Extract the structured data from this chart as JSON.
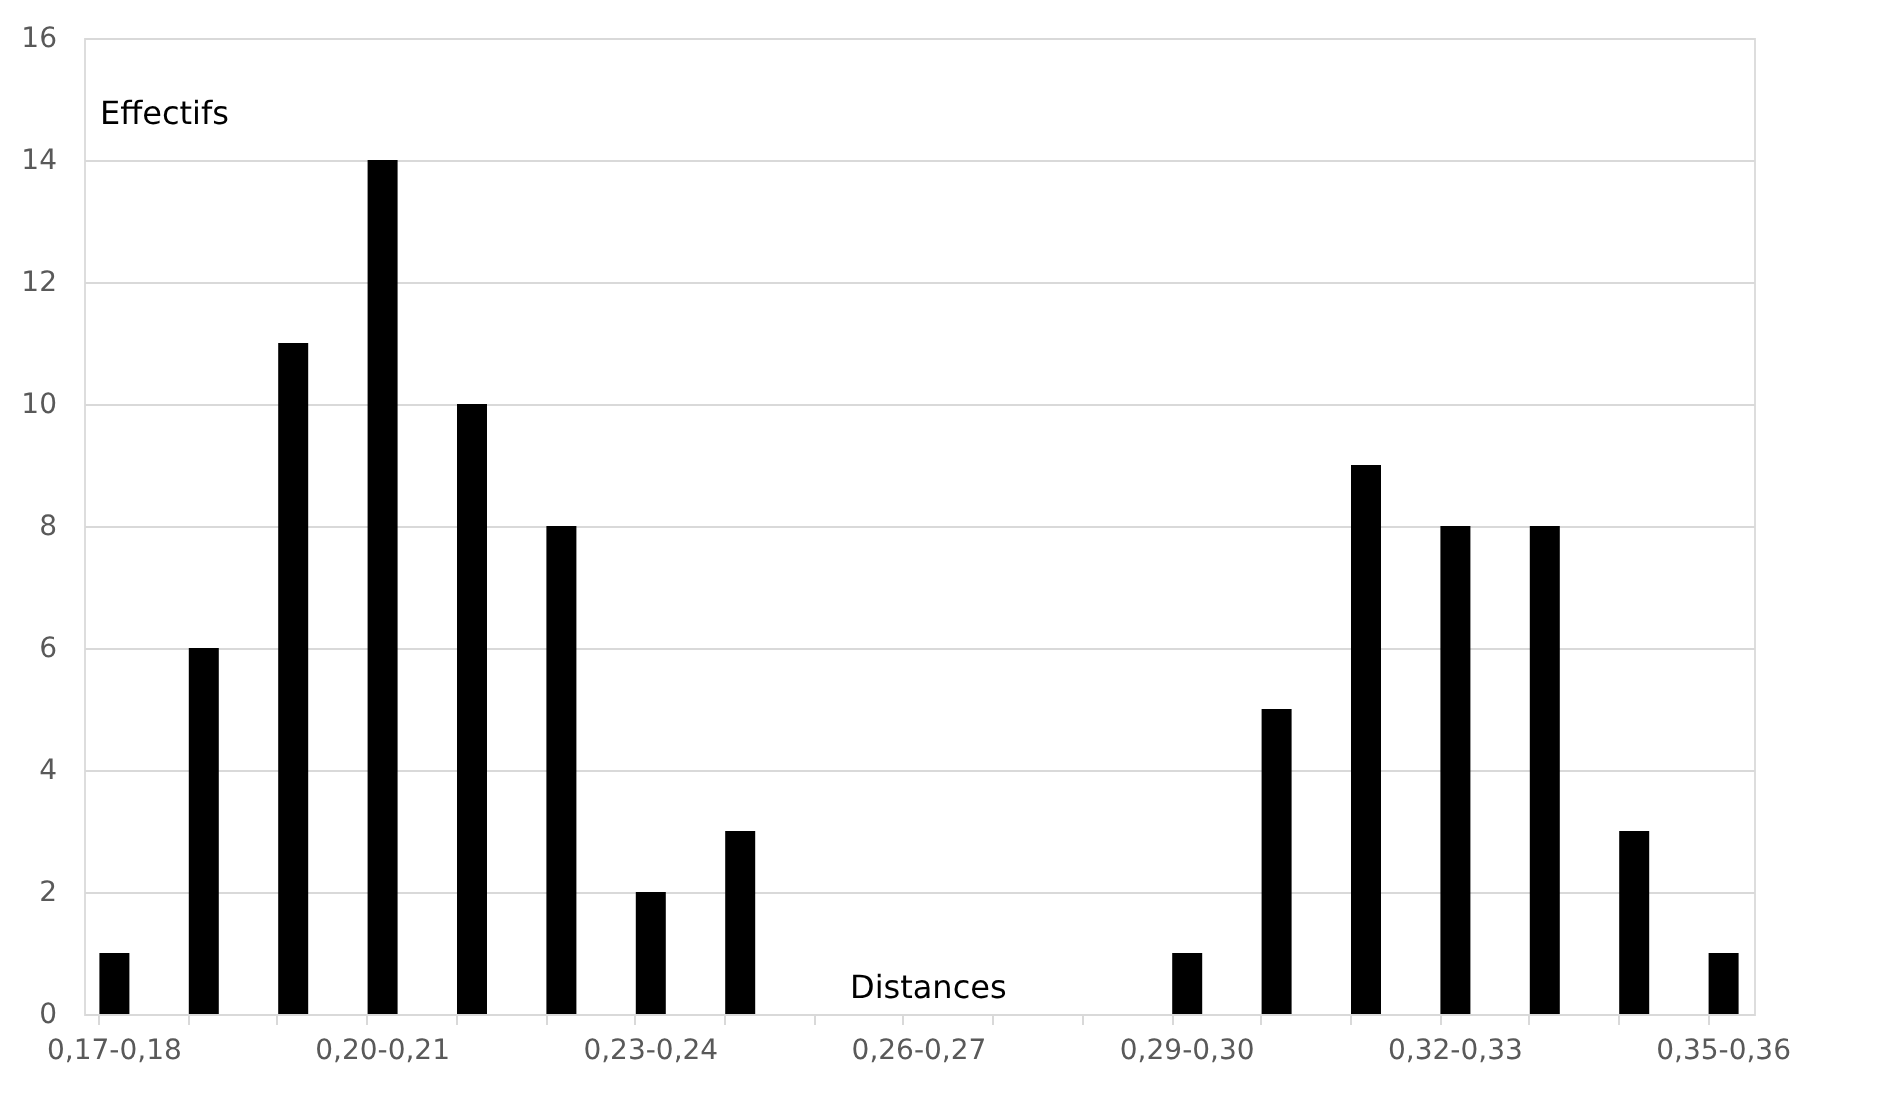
{
  "chart_data": {
    "type": "bar",
    "xlabel": "Distances",
    "ylabel": "Effectifs",
    "categories": [
      "0,17-0,18",
      null,
      null,
      "0,20-0,21",
      null,
      null,
      "0,23-0,24",
      null,
      null,
      "0,26-0,27",
      null,
      null,
      "0,29-0,30",
      null,
      null,
      "0,32-0,33",
      null,
      null,
      "0,35-0,36"
    ],
    "values": [
      1,
      6,
      11,
      14,
      10,
      8,
      2,
      3,
      0,
      0,
      0,
      0,
      1,
      5,
      9,
      8,
      8,
      3,
      1
    ],
    "color": "#000000",
    "ylim": [
      0,
      16
    ],
    "yticks": [
      0,
      2,
      4,
      6,
      8,
      10,
      12,
      14,
      16
    ],
    "grid": "y"
  }
}
